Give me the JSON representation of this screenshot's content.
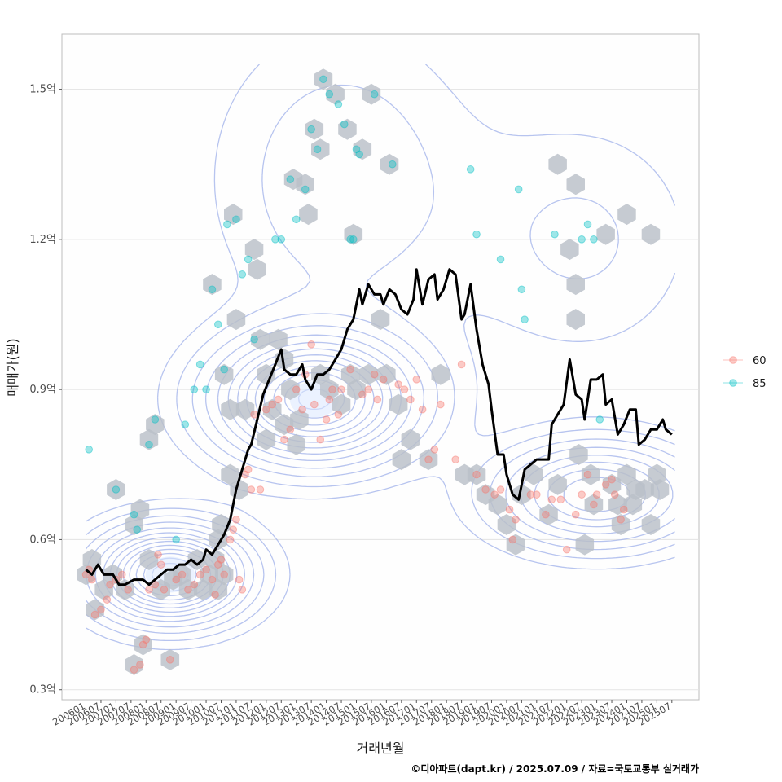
{
  "chart_data": {
    "type": "scatter",
    "xlabel": "거래년월",
    "ylabel": "매매가(원)",
    "caption": "©디아파트(dapt.kr) / 2025.07.09 / 자료=국토교통부 실거래가",
    "x_ticks": [
      "200601",
      "200607",
      "200701",
      "200707",
      "200801",
      "200807",
      "200901",
      "200907",
      "201001",
      "201007",
      "201101",
      "201107",
      "201201",
      "201207",
      "201301",
      "201307",
      "201401",
      "201407",
      "201501",
      "201507",
      "201601",
      "201607",
      "201701",
      "201707",
      "201801",
      "201807",
      "201901",
      "201907",
      "202001",
      "202007",
      "202101",
      "202107",
      "202201",
      "202207",
      "202301",
      "202307",
      "202401",
      "202407",
      "202501",
      "202507"
    ],
    "y_ticks": [
      {
        "value": 0.3,
        "label": "0.3억"
      },
      {
        "value": 0.6,
        "label": "0.6억"
      },
      {
        "value": 0.9,
        "label": "0.9억"
      },
      {
        "value": 1.2,
        "label": "1.2억"
      },
      {
        "value": 1.5,
        "label": "1.5억"
      }
    ],
    "xlim": [
      2005.2,
      2026.4
    ],
    "ylim": [
      0.28,
      1.61
    ],
    "grid": true,
    "legend_position": "right",
    "series": [
      {
        "name": "60",
        "color": "#F8766D",
        "points": [
          [
            2006.0,
            0.53
          ],
          [
            2006.1,
            0.54
          ],
          [
            2006.2,
            0.52
          ],
          [
            2006.3,
            0.45
          ],
          [
            2006.5,
            0.46
          ],
          [
            2006.7,
            0.48
          ],
          [
            2006.8,
            0.51
          ],
          [
            2007.0,
            0.52
          ],
          [
            2007.2,
            0.53
          ],
          [
            2007.4,
            0.5
          ],
          [
            2007.6,
            0.34
          ],
          [
            2007.8,
            0.35
          ],
          [
            2007.9,
            0.39
          ],
          [
            2008.0,
            0.4
          ],
          [
            2008.1,
            0.5
          ],
          [
            2008.3,
            0.51
          ],
          [
            2008.4,
            0.57
          ],
          [
            2008.5,
            0.55
          ],
          [
            2008.6,
            0.5
          ],
          [
            2008.8,
            0.36
          ],
          [
            2009.0,
            0.52
          ],
          [
            2009.2,
            0.53
          ],
          [
            2009.4,
            0.5
          ],
          [
            2009.6,
            0.51
          ],
          [
            2009.8,
            0.53
          ],
          [
            2010.0,
            0.54
          ],
          [
            2010.2,
            0.52
          ],
          [
            2010.3,
            0.49
          ],
          [
            2010.4,
            0.55
          ],
          [
            2010.5,
            0.56
          ],
          [
            2010.6,
            0.53
          ],
          [
            2010.8,
            0.6
          ],
          [
            2010.9,
            0.62
          ],
          [
            2011.0,
            0.64
          ],
          [
            2011.1,
            0.52
          ],
          [
            2011.2,
            0.5
          ],
          [
            2011.3,
            0.73
          ],
          [
            2011.4,
            0.74
          ],
          [
            2011.5,
            0.7
          ],
          [
            2011.6,
            0.85
          ],
          [
            2011.8,
            0.7
          ],
          [
            2012.0,
            0.86
          ],
          [
            2012.2,
            0.87
          ],
          [
            2012.4,
            0.88
          ],
          [
            2012.6,
            0.8
          ],
          [
            2012.8,
            0.82
          ],
          [
            2013.0,
            0.9
          ],
          [
            2013.2,
            0.86
          ],
          [
            2013.3,
            0.93
          ],
          [
            2013.5,
            0.99
          ],
          [
            2013.6,
            0.87
          ],
          [
            2013.8,
            0.8
          ],
          [
            2014.0,
            0.84
          ],
          [
            2014.1,
            0.88
          ],
          [
            2014.2,
            0.9
          ],
          [
            2014.4,
            0.85
          ],
          [
            2014.5,
            0.9
          ],
          [
            2014.8,
            0.94
          ],
          [
            2015.2,
            0.89
          ],
          [
            2015.4,
            0.9
          ],
          [
            2015.6,
            0.93
          ],
          [
            2015.7,
            0.88
          ],
          [
            2015.9,
            0.92
          ],
          [
            2016.4,
            0.91
          ],
          [
            2016.6,
            0.9
          ],
          [
            2016.8,
            0.88
          ],
          [
            2017.0,
            0.92
          ],
          [
            2017.2,
            0.86
          ],
          [
            2017.4,
            0.76
          ],
          [
            2017.6,
            0.78
          ],
          [
            2017.8,
            0.87
          ],
          [
            2018.3,
            0.76
          ],
          [
            2018.5,
            0.95
          ],
          [
            2019.0,
            0.73
          ],
          [
            2019.3,
            0.7
          ],
          [
            2019.6,
            0.69
          ],
          [
            2019.8,
            0.7
          ],
          [
            2020.1,
            0.66
          ],
          [
            2020.2,
            0.6
          ],
          [
            2020.3,
            0.64
          ],
          [
            2020.8,
            0.69
          ],
          [
            2021.0,
            0.69
          ],
          [
            2021.3,
            0.65
          ],
          [
            2021.5,
            0.68
          ],
          [
            2021.8,
            0.68
          ],
          [
            2022.0,
            0.58
          ],
          [
            2022.3,
            0.65
          ],
          [
            2022.5,
            0.69
          ],
          [
            2022.7,
            0.73
          ],
          [
            2022.9,
            0.67
          ],
          [
            2023.0,
            0.69
          ],
          [
            2023.3,
            0.71
          ],
          [
            2023.5,
            0.72
          ],
          [
            2023.6,
            0.69
          ],
          [
            2023.8,
            0.64
          ],
          [
            2023.9,
            0.66
          ]
        ]
      },
      {
        "name": "85",
        "color": "#00BFC4",
        "points": [
          [
            2006.1,
            0.78
          ],
          [
            2007.0,
            0.7
          ],
          [
            2007.6,
            0.65
          ],
          [
            2007.7,
            0.62
          ],
          [
            2008.1,
            0.79
          ],
          [
            2008.3,
            0.84
          ],
          [
            2009.0,
            0.6
          ],
          [
            2009.3,
            0.83
          ],
          [
            2009.6,
            0.9
          ],
          [
            2009.8,
            0.95
          ],
          [
            2010.0,
            0.9
          ],
          [
            2010.2,
            1.1
          ],
          [
            2010.4,
            1.03
          ],
          [
            2010.6,
            0.94
          ],
          [
            2010.7,
            1.23
          ],
          [
            2011.0,
            1.24
          ],
          [
            2011.2,
            1.13
          ],
          [
            2011.4,
            1.16
          ],
          [
            2011.6,
            1.0
          ],
          [
            2012.3,
            1.2
          ],
          [
            2012.5,
            1.2
          ],
          [
            2012.8,
            1.32
          ],
          [
            2013.0,
            1.24
          ],
          [
            2013.3,
            1.3
          ],
          [
            2013.5,
            1.42
          ],
          [
            2013.7,
            1.38
          ],
          [
            2013.9,
            1.52
          ],
          [
            2014.1,
            1.49
          ],
          [
            2014.4,
            1.47
          ],
          [
            2014.6,
            1.43
          ],
          [
            2014.8,
            1.2
          ],
          [
            2014.9,
            1.2
          ],
          [
            2015.0,
            1.38
          ],
          [
            2015.1,
            1.37
          ],
          [
            2015.6,
            1.49
          ],
          [
            2016.2,
            1.35
          ],
          [
            2018.8,
            1.34
          ],
          [
            2019.0,
            1.21
          ],
          [
            2019.8,
            1.16
          ],
          [
            2020.4,
            1.3
          ],
          [
            2020.5,
            1.1
          ],
          [
            2020.6,
            1.04
          ],
          [
            2021.6,
            1.21
          ],
          [
            2022.5,
            1.2
          ],
          [
            2022.7,
            1.23
          ],
          [
            2022.9,
            1.2
          ],
          [
            2023.1,
            0.84
          ]
        ]
      }
    ],
    "hexbin_centers": [
      [
        2006.0,
        0.53
      ],
      [
        2006.2,
        0.56
      ],
      [
        2006.3,
        0.46
      ],
      [
        2006.6,
        0.5
      ],
      [
        2006.9,
        0.53
      ],
      [
        2007.0,
        0.7
      ],
      [
        2007.3,
        0.5
      ],
      [
        2007.6,
        0.35
      ],
      [
        2007.6,
        0.63
      ],
      [
        2007.8,
        0.66
      ],
      [
        2007.9,
        0.39
      ],
      [
        2008.1,
        0.56
      ],
      [
        2008.1,
        0.8
      ],
      [
        2008.3,
        0.83
      ],
      [
        2008.5,
        0.5
      ],
      [
        2008.8,
        0.36
      ],
      [
        2008.9,
        0.52
      ],
      [
        2009.2,
        0.53
      ],
      [
        2009.4,
        0.5
      ],
      [
        2009.7,
        0.56
      ],
      [
        2009.9,
        0.5
      ],
      [
        2010.1,
        0.53
      ],
      [
        2010.2,
        1.11
      ],
      [
        2010.3,
        0.56
      ],
      [
        2010.4,
        0.5
      ],
      [
        2010.4,
        0.6
      ],
      [
        2010.5,
        0.63
      ],
      [
        2010.6,
        0.93
      ],
      [
        2010.6,
        0.53
      ],
      [
        2010.8,
        0.86
      ],
      [
        2010.8,
        0.73
      ],
      [
        2010.9,
        1.25
      ],
      [
        2011.0,
        1.04
      ],
      [
        2011.1,
        0.7
      ],
      [
        2011.3,
        0.86
      ],
      [
        2011.6,
        1.18
      ],
      [
        2011.7,
        1.14
      ],
      [
        2011.8,
        1.0
      ],
      [
        2012.0,
        0.93
      ],
      [
        2012.0,
        0.8
      ],
      [
        2012.2,
        0.86
      ],
      [
        2012.4,
        1.0
      ],
      [
        2012.6,
        0.96
      ],
      [
        2012.6,
        0.83
      ],
      [
        2012.8,
        0.9
      ],
      [
        2012.9,
        1.32
      ],
      [
        2013.0,
        0.79
      ],
      [
        2013.1,
        0.84
      ],
      [
        2013.3,
        1.31
      ],
      [
        2013.4,
        1.25
      ],
      [
        2013.6,
        1.42
      ],
      [
        2013.8,
        1.38
      ],
      [
        2013.8,
        0.93
      ],
      [
        2013.9,
        1.52
      ],
      [
        2014.1,
        0.9
      ],
      [
        2014.3,
        1.49
      ],
      [
        2014.5,
        0.87
      ],
      [
        2014.7,
        1.42
      ],
      [
        2014.8,
        0.93
      ],
      [
        2014.9,
        1.21
      ],
      [
        2015.0,
        0.9
      ],
      [
        2015.2,
        1.38
      ],
      [
        2015.4,
        0.93
      ],
      [
        2015.5,
        1.49
      ],
      [
        2015.8,
        1.04
      ],
      [
        2016.0,
        0.93
      ],
      [
        2016.1,
        1.35
      ],
      [
        2016.4,
        0.87
      ],
      [
        2016.5,
        0.76
      ],
      [
        2016.8,
        0.8
      ],
      [
        2017.4,
        0.76
      ],
      [
        2017.8,
        0.93
      ],
      [
        2018.6,
        0.73
      ],
      [
        2019.0,
        0.73
      ],
      [
        2019.3,
        0.69
      ],
      [
        2019.7,
        0.67
      ],
      [
        2020.0,
        0.63
      ],
      [
        2020.3,
        0.59
      ],
      [
        2020.5,
        0.69
      ],
      [
        2020.9,
        0.73
      ],
      [
        2021.4,
        0.65
      ],
      [
        2021.7,
        1.35
      ],
      [
        2021.7,
        0.71
      ],
      [
        2022.1,
        1.18
      ],
      [
        2022.3,
        1.31
      ],
      [
        2022.3,
        1.11
      ],
      [
        2022.3,
        1.04
      ],
      [
        2022.4,
        0.77
      ],
      [
        2022.6,
        0.59
      ],
      [
        2022.8,
        0.73
      ],
      [
        2022.9,
        0.67
      ],
      [
        2023.3,
        1.21
      ],
      [
        2023.5,
        0.71
      ],
      [
        2023.7,
        0.67
      ],
      [
        2023.8,
        0.63
      ],
      [
        2024.0,
        1.25
      ],
      [
        2024.0,
        0.73
      ],
      [
        2024.2,
        0.67
      ],
      [
        2024.3,
        0.7
      ],
      [
        2024.6,
        0.7
      ],
      [
        2024.8,
        1.21
      ],
      [
        2024.8,
        0.63
      ],
      [
        2025.0,
        0.73
      ],
      [
        2025.1,
        0.7
      ]
    ],
    "median_line": [
      [
        2006.0,
        0.54
      ],
      [
        2006.2,
        0.53
      ],
      [
        2006.4,
        0.55
      ],
      [
        2006.6,
        0.53
      ],
      [
        2006.9,
        0.53
      ],
      [
        2007.1,
        0.51
      ],
      [
        2007.3,
        0.51
      ],
      [
        2007.6,
        0.52
      ],
      [
        2007.9,
        0.52
      ],
      [
        2008.1,
        0.51
      ],
      [
        2008.3,
        0.52
      ],
      [
        2008.5,
        0.53
      ],
      [
        2008.7,
        0.54
      ],
      [
        2008.9,
        0.54
      ],
      [
        2009.1,
        0.55
      ],
      [
        2009.3,
        0.55
      ],
      [
        2009.5,
        0.56
      ],
      [
        2009.7,
        0.55
      ],
      [
        2009.9,
        0.56
      ],
      [
        2010.0,
        0.58
      ],
      [
        2010.2,
        0.57
      ],
      [
        2010.4,
        0.59
      ],
      [
        2010.6,
        0.61
      ],
      [
        2010.8,
        0.64
      ],
      [
        2011.0,
        0.7
      ],
      [
        2011.2,
        0.74
      ],
      [
        2011.4,
        0.78
      ],
      [
        2011.5,
        0.79
      ],
      [
        2011.7,
        0.84
      ],
      [
        2011.9,
        0.89
      ],
      [
        2012.1,
        0.92
      ],
      [
        2012.3,
        0.95
      ],
      [
        2012.5,
        0.98
      ],
      [
        2012.6,
        0.94
      ],
      [
        2012.8,
        0.93
      ],
      [
        2013.0,
        0.93
      ],
      [
        2013.2,
        0.95
      ],
      [
        2013.3,
        0.92
      ],
      [
        2013.5,
        0.9
      ],
      [
        2013.7,
        0.93
      ],
      [
        2013.9,
        0.93
      ],
      [
        2014.1,
        0.94
      ],
      [
        2014.3,
        0.96
      ],
      [
        2014.5,
        0.98
      ],
      [
        2014.7,
        1.02
      ],
      [
        2014.9,
        1.04
      ],
      [
        2015.1,
        1.1
      ],
      [
        2015.2,
        1.07
      ],
      [
        2015.4,
        1.11
      ],
      [
        2015.6,
        1.09
      ],
      [
        2015.8,
        1.09
      ],
      [
        2015.9,
        1.07
      ],
      [
        2016.1,
        1.1
      ],
      [
        2016.3,
        1.09
      ],
      [
        2016.5,
        1.06
      ],
      [
        2016.7,
        1.05
      ],
      [
        2016.9,
        1.08
      ],
      [
        2017.0,
        1.14
      ],
      [
        2017.2,
        1.07
      ],
      [
        2017.4,
        1.12
      ],
      [
        2017.6,
        1.13
      ],
      [
        2017.7,
        1.08
      ],
      [
        2017.9,
        1.1
      ],
      [
        2018.1,
        1.14
      ],
      [
        2018.3,
        1.13
      ],
      [
        2018.5,
        1.04
      ],
      [
        2018.6,
        1.05
      ],
      [
        2018.8,
        1.11
      ],
      [
        2019.0,
        1.02
      ],
      [
        2019.2,
        0.95
      ],
      [
        2019.4,
        0.91
      ],
      [
        2019.5,
        0.86
      ],
      [
        2019.7,
        0.77
      ],
      [
        2019.9,
        0.77
      ],
      [
        2020.0,
        0.73
      ],
      [
        2020.2,
        0.69
      ],
      [
        2020.4,
        0.68
      ],
      [
        2020.6,
        0.74
      ],
      [
        2020.8,
        0.75
      ],
      [
        2021.0,
        0.76
      ],
      [
        2021.2,
        0.76
      ],
      [
        2021.4,
        0.76
      ],
      [
        2021.5,
        0.83
      ],
      [
        2021.7,
        0.85
      ],
      [
        2021.9,
        0.87
      ],
      [
        2022.1,
        0.96
      ],
      [
        2022.3,
        0.89
      ],
      [
        2022.5,
        0.88
      ],
      [
        2022.6,
        0.84
      ],
      [
        2022.8,
        0.92
      ],
      [
        2023.0,
        0.92
      ],
      [
        2023.2,
        0.93
      ],
      [
        2023.3,
        0.87
      ],
      [
        2023.5,
        0.88
      ],
      [
        2023.7,
        0.81
      ],
      [
        2023.9,
        0.83
      ],
      [
        2024.1,
        0.86
      ],
      [
        2024.3,
        0.86
      ],
      [
        2024.4,
        0.79
      ],
      [
        2024.6,
        0.8
      ],
      [
        2024.8,
        0.82
      ],
      [
        2025.0,
        0.82
      ],
      [
        2025.2,
        0.84
      ],
      [
        2025.3,
        0.82
      ],
      [
        2025.5,
        0.81
      ]
    ]
  }
}
